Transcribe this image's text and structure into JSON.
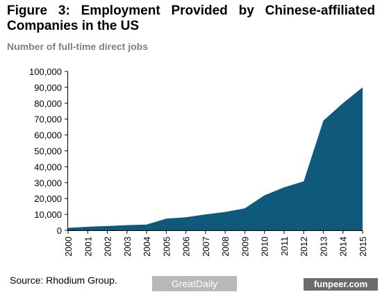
{
  "header": {
    "title": "Figure 3: Employment Provided by Chinese-affiliated Companies in the US",
    "subtitle": "Number of full-time direct jobs"
  },
  "footer": {
    "source": "Source: Rhodium Group."
  },
  "watermarks": {
    "left": "GreatDaily",
    "right": "funpeer.com"
  },
  "colors": {
    "area": "#0f5a7a",
    "axis": "#000000",
    "subtitle": "#7f7f7f"
  },
  "chart_data": {
    "type": "area",
    "x": [
      "2000",
      "2001",
      "2002",
      "2003",
      "2004",
      "2005",
      "2006",
      "2007",
      "2008",
      "2009",
      "2010",
      "2011",
      "2012",
      "2013",
      "2014",
      "2015"
    ],
    "series": [
      {
        "values": [
          1500,
          2200,
          2700,
          3200,
          3600,
          7300,
          8200,
          10000,
          11500,
          13800,
          22000,
          27000,
          30800,
          69000,
          80000,
          90000
        ]
      }
    ],
    "y_ticks": [
      "0",
      "10,000",
      "20,000",
      "30,000",
      "40,000",
      "50,000",
      "60,000",
      "70,000",
      "80,000",
      "90,000",
      "100,000"
    ],
    "ylim": [
      0,
      100000
    ],
    "xlabel": "",
    "ylabel": "",
    "grid": false,
    "legend": "none"
  }
}
